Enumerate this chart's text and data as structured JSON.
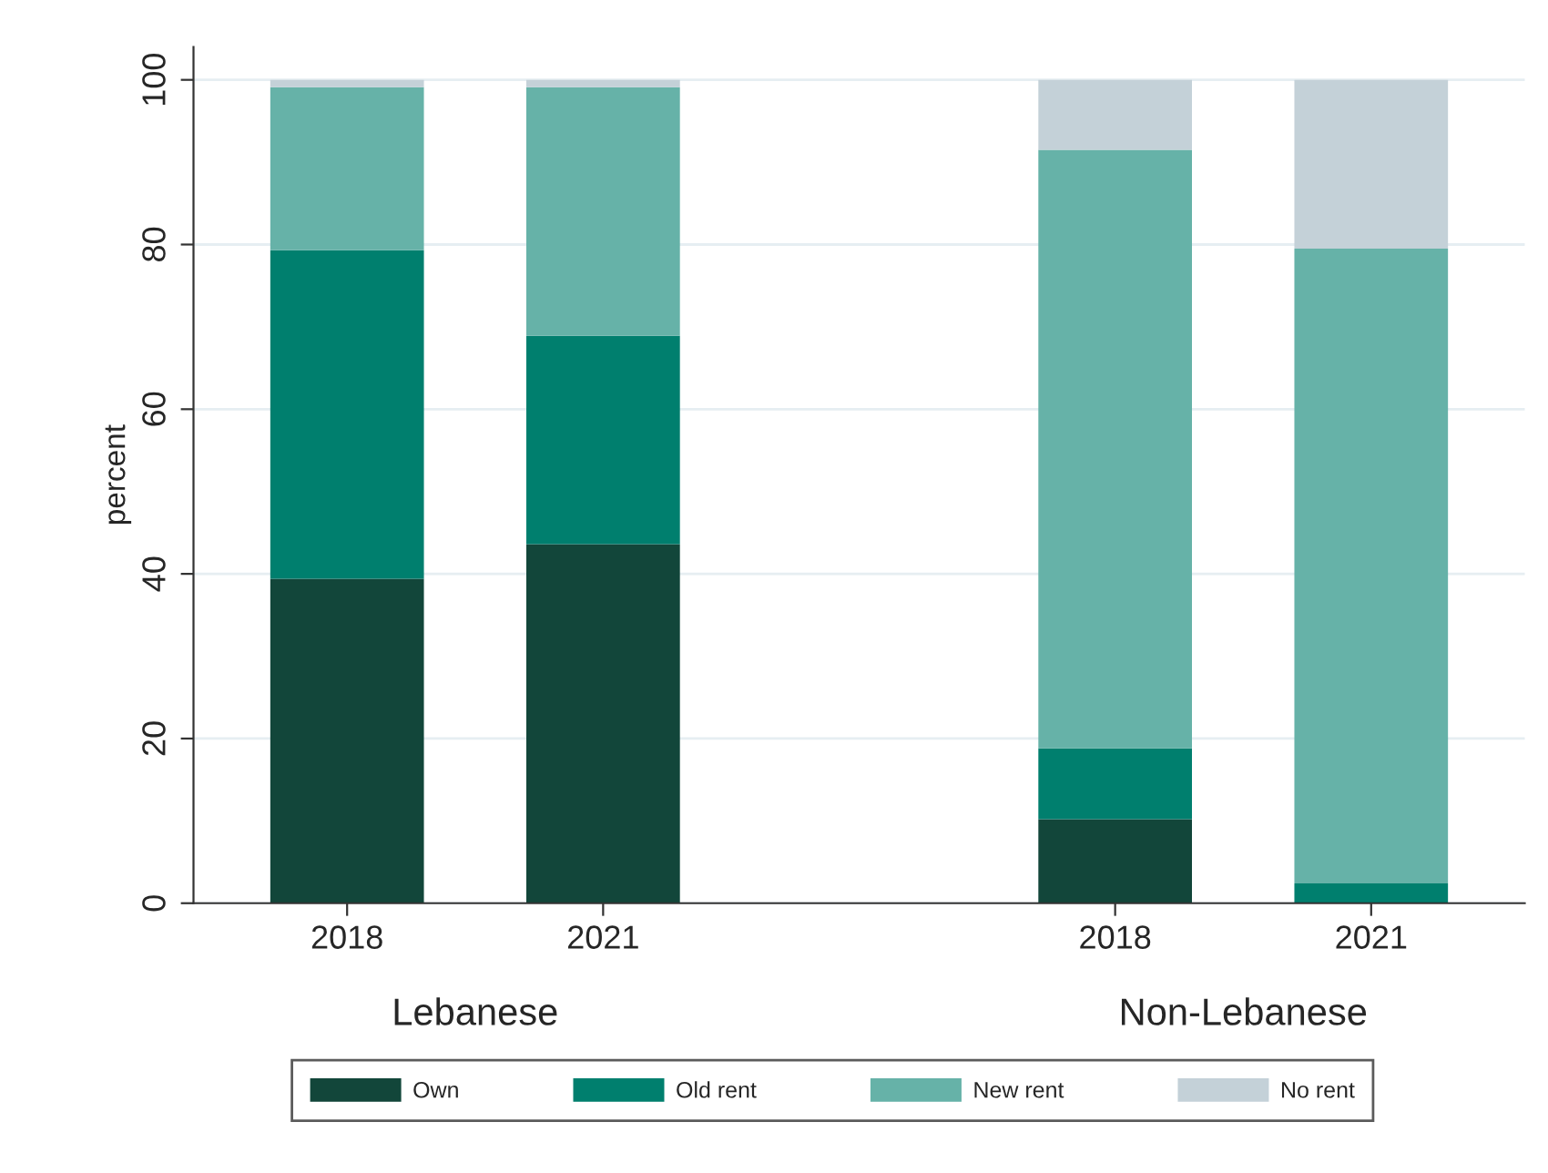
{
  "chart_data": {
    "type": "bar",
    "stacked": true,
    "ylabel": "percent",
    "categories": [
      "2018",
      "2021",
      null,
      "2018",
      "2021"
    ],
    "series": [
      {
        "name": "Own",
        "color": "#12463a",
        "values": [
          39.4,
          43.6,
          null,
          10.2,
          0
        ]
      },
      {
        "name": "Old rent",
        "color": "#007f6e",
        "values": [
          39.9,
          25.3,
          null,
          8.6,
          2.4
        ]
      },
      {
        "name": "New rent",
        "color": "#66b2a8",
        "values": [
          19.8,
          30.2,
          null,
          72.7,
          77.1
        ]
      },
      {
        "name": "No rent",
        "color": "#c4d1d8",
        "values": [
          0.9,
          0.9,
          null,
          8.5,
          20.5
        ]
      }
    ],
    "annotations": [
      "Lebanese",
      "Non-Lebanese"
    ],
    "ylim": [
      0,
      104
    ],
    "yticks": [
      0,
      20,
      40,
      60,
      80,
      100
    ],
    "grid": "y",
    "legend": "bottom"
  }
}
